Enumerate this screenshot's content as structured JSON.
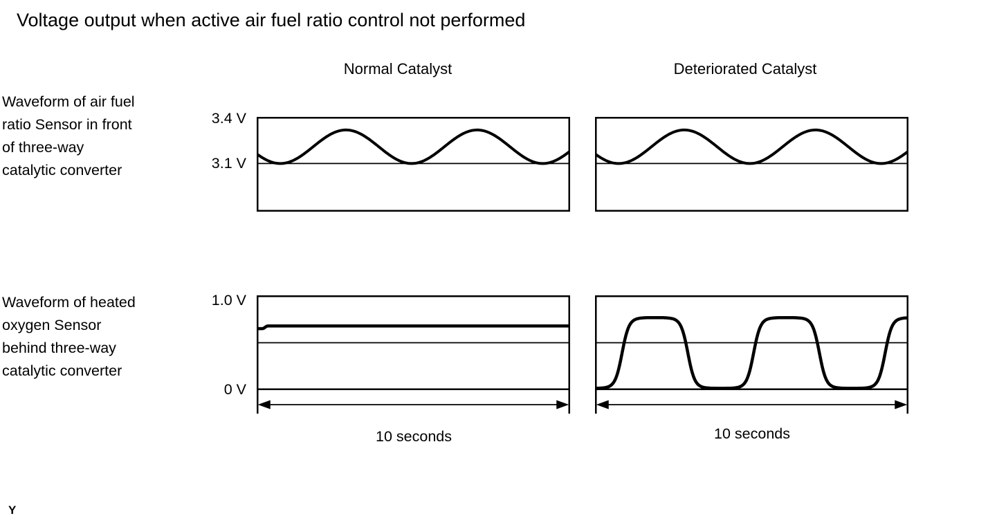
{
  "colors": {
    "ink": "#000000",
    "background": "#ffffff"
  },
  "page": {
    "title": "Voltage output when active air fuel ratio control not performed",
    "footer_mark": "Y"
  },
  "columns": [
    {
      "label": "Normal Catalyst"
    },
    {
      "label": "Deteriorated Catalyst"
    }
  ],
  "rows": [
    {
      "label": "Waveform of air fuel ratio Sensor in front of three-way catalytic converter",
      "label_multiline": "Waveform of air fuel\nratio Sensor in front\nof three-way\ncatalytic converter",
      "y_labels": [
        "3.4 V",
        "3.1 V"
      ]
    },
    {
      "label": "Waveform of heated oxygen Sensor behind three-way catalytic converter",
      "label_multiline": "Waveform of heated\noxygen Sensor\nbehind three-way\ncatalytic converter",
      "y_labels": [
        "1.0 V",
        "0 V"
      ]
    }
  ],
  "chart_data": [
    {
      "id": "afr-sensor-normal",
      "type": "line",
      "row": "Waveform of air fuel ratio Sensor in front of three-way catalytic converter",
      "column": "Normal Catalyst",
      "y_axis": {
        "unit": "V",
        "box_top_v": 3.4,
        "box_bottom_v": 2.79,
        "gridline_v": 3.1,
        "tick_labels": [
          "3.4 V",
          "3.1 V"
        ]
      },
      "x_axis": {
        "span_label": null
      },
      "wave": {
        "shape": "raised_sine",
        "description": "smooth sine oscillation whose troughs rest on the 3.1 V line, about 2.2 cycles",
        "min_v": 3.1,
        "max_v": 3.32,
        "phase_x_frac": 0.073,
        "period_frac": 0.421,
        "stroke": 4
      }
    },
    {
      "id": "afr-sensor-deteriorated",
      "type": "line",
      "row": "Waveform of air fuel ratio Sensor in front of three-way catalytic converter",
      "column": "Deteriorated Catalyst",
      "y_axis": {
        "unit": "V",
        "box_top_v": 3.4,
        "box_bottom_v": 2.79,
        "gridline_v": 3.1,
        "tick_labels": [
          "3.4 V",
          "3.1 V"
        ]
      },
      "x_axis": {
        "span_label": null
      },
      "wave": {
        "shape": "raised_sine",
        "description": "identical sine oscillation to the normal catalyst panel",
        "min_v": 3.1,
        "max_v": 3.32,
        "phase_x_frac": 0.073,
        "period_frac": 0.421,
        "stroke": 4
      }
    },
    {
      "id": "o2-sensor-normal",
      "type": "line",
      "row": "Waveform of heated oxygen Sensor behind three-way catalytic converter",
      "column": "Normal Catalyst",
      "y_axis": {
        "unit": "V",
        "box_top_v": 1.0,
        "box_bottom_v": 0.0,
        "gridline_v": 0.5,
        "tick_labels": [
          "1.0 V",
          "0 V"
        ]
      },
      "x_axis": {
        "span_label": "10 seconds"
      },
      "wave": {
        "shape": "flat",
        "description": "steady output holding near 0.68 V with a tiny rise at the left edge",
        "level_v": 0.68,
        "start_v": 0.652,
        "flat_until_frac": 0.016,
        "ramp_frac": 0.016,
        "stroke": 4.5
      }
    },
    {
      "id": "o2-sensor-deteriorated",
      "type": "line",
      "row": "Waveform of heated oxygen Sensor behind three-way catalytic converter",
      "column": "Deteriorated Catalyst",
      "y_axis": {
        "unit": "V",
        "box_top_v": 1.0,
        "box_bottom_v": 0.0,
        "gridline_v": 0.5,
        "tick_labels": [
          "1.0 V",
          "0 V"
        ]
      },
      "x_axis": {
        "span_label": "10 seconds"
      },
      "wave": {
        "shape": "clipped_sine",
        "description": "large oscillation between about 0 V and 0.77 V with flattened peaks and troughs, about 2.3 cycles",
        "min_v": 0.01,
        "max_v": 0.77,
        "phase_x_frac": 0.084,
        "period_frac": 0.422,
        "clip_k": 3,
        "stroke": 4.5
      }
    }
  ]
}
